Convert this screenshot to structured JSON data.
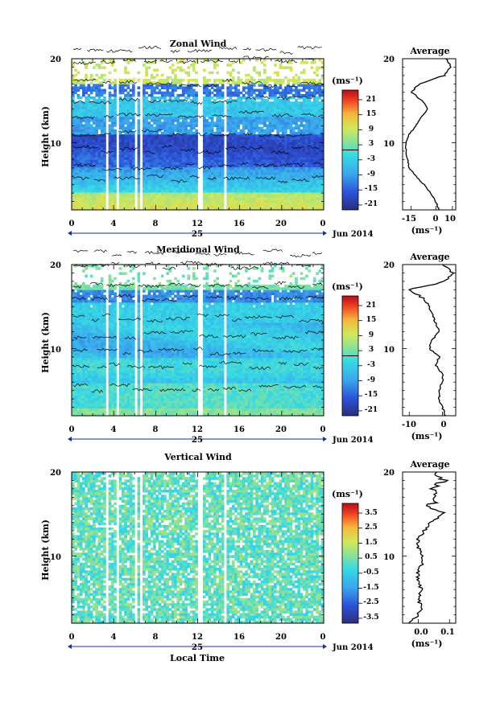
{
  "chart_data": [
    {
      "type": "heatmap",
      "title": "Zonal Wind",
      "ylabel": "Height (km)",
      "ylim": [
        2,
        20
      ],
      "xlim": [
        0,
        24
      ],
      "x_ticks": [
        "0",
        "4",
        "8",
        "12",
        "16",
        "20",
        "0"
      ],
      "y_ticks": [
        "20",
        "10"
      ],
      "date_label": "25",
      "month_label": "Jun 2014",
      "colorbar": {
        "unit": "(ms⁻¹)",
        "ticks": [
          "21",
          "15",
          "9",
          "3",
          "-3",
          "-9",
          "-15",
          "-21"
        ],
        "range": [
          -24,
          24
        ]
      },
      "profile": {
        "title": "Average",
        "xlabel": "(ms⁻¹)",
        "x_ticks": [
          "-15",
          "0",
          "10"
        ],
        "xlim": [
          -20,
          12
        ],
        "heights": [
          2,
          3,
          4,
          5,
          6,
          7,
          8,
          9,
          10,
          11,
          12,
          13,
          14,
          15,
          16,
          17,
          18,
          19,
          20
        ],
        "values": [
          2,
          0,
          -3,
          -7,
          -12,
          -16,
          -17,
          -18,
          -18,
          -16,
          -12,
          -9,
          -5,
          -8,
          -15,
          -10,
          5,
          9,
          6
        ]
      }
    },
    {
      "type": "heatmap",
      "title": "Meridional Wind",
      "ylabel": "Height (km)",
      "ylim": [
        2,
        20
      ],
      "xlim": [
        0,
        24
      ],
      "x_ticks": [
        "0",
        "4",
        "8",
        "12",
        "16",
        "20",
        "0"
      ],
      "y_ticks": [
        "20",
        "10"
      ],
      "date_label": "25",
      "month_label": "Jun 2014",
      "colorbar": {
        "unit": "(ms⁻¹)",
        "ticks": [
          "21",
          "15",
          "9",
          "3",
          "-3",
          "-9",
          "-15",
          "-21"
        ],
        "range": [
          -24,
          24
        ]
      },
      "profile": {
        "title": "Average",
        "xlabel": "(ms⁻¹)",
        "x_ticks": [
          "-10",
          "0"
        ],
        "xlim": [
          -12,
          4
        ],
        "heights": [
          2,
          3,
          4,
          5,
          6,
          7,
          8,
          9,
          10,
          11,
          12,
          13,
          14,
          15,
          16,
          17,
          18,
          19,
          20
        ],
        "values": [
          1,
          0,
          -1,
          -1,
          0,
          0,
          -2,
          -1,
          -4,
          -3,
          -1,
          -2,
          -3,
          -4,
          -6,
          -10,
          1,
          3,
          0
        ]
      }
    },
    {
      "type": "heatmap",
      "title": "Vertical Wind",
      "ylabel": "Height (km)",
      "xlabel": "Local Time",
      "ylim": [
        2,
        20
      ],
      "xlim": [
        0,
        24
      ],
      "x_ticks": [
        "0",
        "4",
        "8",
        "12",
        "16",
        "20",
        "0"
      ],
      "y_ticks": [
        "20",
        "10"
      ],
      "date_label": "25",
      "month_label": "Jun 2014",
      "colorbar": {
        "unit": "(ms⁻¹)",
        "ticks": [
          "3.5",
          "2.5",
          "1.5",
          "0.5",
          "-0.5",
          "-1.5",
          "-2.5",
          "-3.5"
        ],
        "range": [
          -4,
          4
        ]
      },
      "profile": {
        "title": "Average",
        "xlabel": "(ms⁻¹)",
        "x_ticks": [
          "0.0",
          "0.1"
        ],
        "xlim": [
          -0.05,
          0.12
        ],
        "heights": [
          2,
          3,
          4,
          5,
          6,
          7,
          8,
          9,
          10,
          11,
          12,
          13,
          14,
          15,
          16,
          17,
          18,
          19,
          20
        ],
        "values": [
          -0.03,
          0.0,
          0.01,
          0.0,
          0.01,
          0.0,
          0.0,
          0.01,
          0.01,
          0.0,
          0.0,
          0.02,
          0.04,
          0.08,
          0.04,
          0.06,
          0.05,
          0.08,
          0.06
        ]
      }
    }
  ]
}
